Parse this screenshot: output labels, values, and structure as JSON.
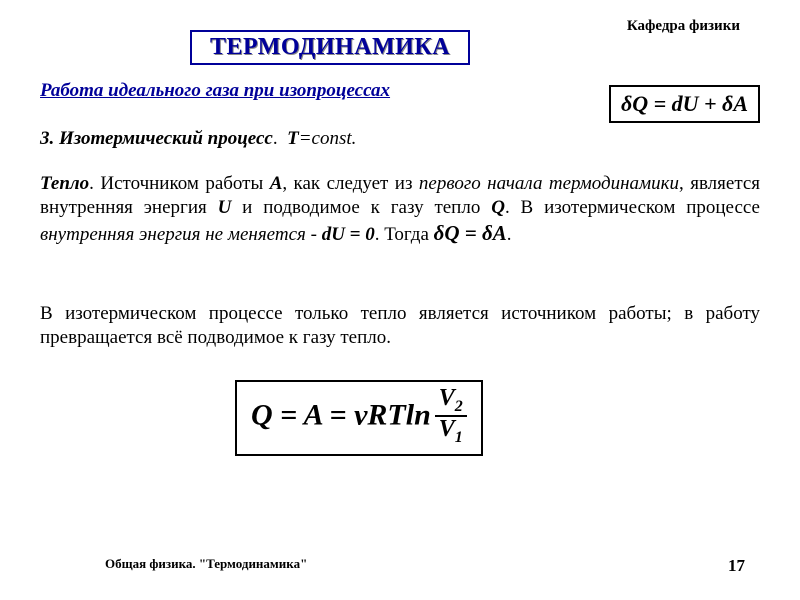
{
  "header": {
    "department": "Кафедра физики"
  },
  "title": "ТЕРМОДИНАМИКА",
  "subtitle": "Работа идеального газа при изопроцессах",
  "formula_top": "δQ = dU + δA",
  "section": {
    "number": "3.",
    "name": "Изотермический процесс",
    "var": "T",
    "eq": "=const."
  },
  "para1": {
    "t1": "Тепло",
    "t2": ". Источником работы ",
    "A": "А",
    "t3": ", как следует из ",
    "t4": "первого начала термодинамики",
    "t5": ", является внутренняя энергия ",
    "U": "U",
    "t6": " и подводимое к газу тепло ",
    "Q": "Q",
    "t7": ". В изотермическом процессе ",
    "t8": "внутренняя энергия не меняется",
    "t9": " - ",
    "dU": "dU = 0",
    "t10": ". Тогда ",
    "eq": "δQ = δA",
    "t11": "."
  },
  "para2": "В изотермическом процессе только тепло является источником работы; в работу превращается всё подводимое к газу тепло.",
  "formula_main": {
    "lhs": "Q = A = νRTln",
    "num": "V",
    "num_sub": "2",
    "den": "V",
    "den_sub": "1"
  },
  "footer": {
    "left": "Общая физика. \"Термодинамика\"",
    "page": "17"
  },
  "colors": {
    "title": "#000099",
    "text": "#000000",
    "bg": "#ffffff"
  }
}
